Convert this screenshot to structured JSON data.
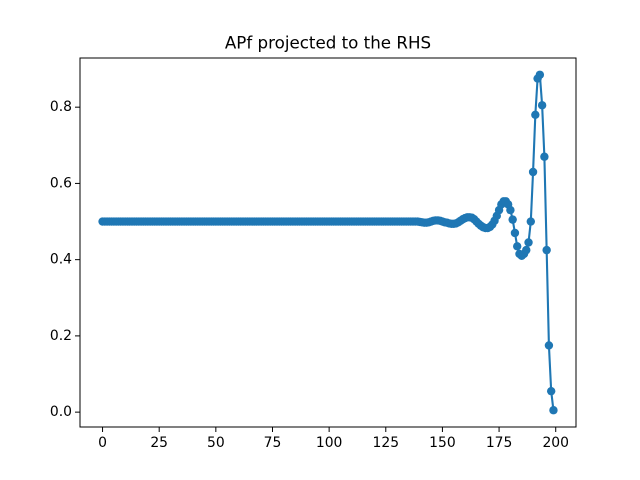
{
  "chart_data": {
    "type": "line",
    "title": "APf projected to the RHS",
    "x": [
      0,
      1,
      2,
      3,
      4,
      5,
      6,
      7,
      8,
      9,
      10,
      11,
      12,
      13,
      14,
      15,
      16,
      17,
      18,
      19,
      20,
      21,
      22,
      23,
      24,
      25,
      26,
      27,
      28,
      29,
      30,
      31,
      32,
      33,
      34,
      35,
      36,
      37,
      38,
      39,
      40,
      41,
      42,
      43,
      44,
      45,
      46,
      47,
      48,
      49,
      50,
      51,
      52,
      53,
      54,
      55,
      56,
      57,
      58,
      59,
      60,
      61,
      62,
      63,
      64,
      65,
      66,
      67,
      68,
      69,
      70,
      71,
      72,
      73,
      74,
      75,
      76,
      77,
      78,
      79,
      80,
      81,
      82,
      83,
      84,
      85,
      86,
      87,
      88,
      89,
      90,
      91,
      92,
      93,
      94,
      95,
      96,
      97,
      98,
      99,
      100,
      101,
      102,
      103,
      104,
      105,
      106,
      107,
      108,
      109,
      110,
      111,
      112,
      113,
      114,
      115,
      116,
      117,
      118,
      119,
      120,
      121,
      122,
      123,
      124,
      125,
      126,
      127,
      128,
      129,
      130,
      131,
      132,
      133,
      134,
      135,
      136,
      137,
      138,
      139,
      140,
      141,
      142,
      143,
      144,
      145,
      146,
      147,
      148,
      149,
      150,
      151,
      152,
      153,
      154,
      155,
      156,
      157,
      158,
      159,
      160,
      161,
      162,
      163,
      164,
      165,
      166,
      167,
      168,
      169,
      170,
      171,
      172,
      173,
      174,
      175,
      176,
      177,
      178,
      179,
      180,
      181,
      182,
      183,
      184,
      185,
      186,
      187,
      188,
      189,
      190,
      191,
      192,
      193,
      194,
      195,
      196,
      197,
      198,
      199
    ],
    "series": [
      {
        "color": "#1f77b4",
        "values": [
          0.5,
          0.5,
          0.5,
          0.5,
          0.5,
          0.5,
          0.5,
          0.5,
          0.5,
          0.5,
          0.5,
          0.5,
          0.5,
          0.5,
          0.5,
          0.5,
          0.5,
          0.5,
          0.5,
          0.5,
          0.5,
          0.5,
          0.5,
          0.5,
          0.5,
          0.5,
          0.5,
          0.5,
          0.5,
          0.5,
          0.5,
          0.5,
          0.5,
          0.5,
          0.5,
          0.5,
          0.5,
          0.5,
          0.5,
          0.5,
          0.5,
          0.5,
          0.5,
          0.5,
          0.5,
          0.5,
          0.5,
          0.5,
          0.5,
          0.5,
          0.5,
          0.5,
          0.5,
          0.5,
          0.5,
          0.5,
          0.5,
          0.5,
          0.5,
          0.5,
          0.5,
          0.5,
          0.5,
          0.5,
          0.5,
          0.5,
          0.5,
          0.5,
          0.5,
          0.5,
          0.5,
          0.5,
          0.5,
          0.5,
          0.5,
          0.5,
          0.5,
          0.5,
          0.5,
          0.5,
          0.5,
          0.5,
          0.5,
          0.5,
          0.5,
          0.5,
          0.5,
          0.5,
          0.5,
          0.5,
          0.5,
          0.5,
          0.5,
          0.5,
          0.5,
          0.5,
          0.5,
          0.5,
          0.5,
          0.5,
          0.5,
          0.5,
          0.5,
          0.5,
          0.5,
          0.5,
          0.5,
          0.5,
          0.5,
          0.5,
          0.5,
          0.5,
          0.5,
          0.5,
          0.5,
          0.5,
          0.5,
          0.5,
          0.5,
          0.5,
          0.5,
          0.5,
          0.5,
          0.5,
          0.5,
          0.5,
          0.5,
          0.5,
          0.5,
          0.5,
          0.5,
          0.5,
          0.5,
          0.5,
          0.5,
          0.5,
          0.5,
          0.5,
          0.5,
          0.5,
          0.499,
          0.498,
          0.497,
          0.497,
          0.498,
          0.5,
          0.502,
          0.503,
          0.503,
          0.502,
          0.5,
          0.498,
          0.497,
          0.495,
          0.494,
          0.494,
          0.495,
          0.498,
          0.502,
          0.506,
          0.509,
          0.511,
          0.511,
          0.51,
          0.506,
          0.5,
          0.494,
          0.489,
          0.485,
          0.483,
          0.483,
          0.486,
          0.492,
          0.502,
          0.515,
          0.53,
          0.545,
          0.553,
          0.553,
          0.545,
          0.53,
          0.505,
          0.47,
          0.435,
          0.415,
          0.41,
          0.415,
          0.425,
          0.445,
          0.5,
          0.63,
          0.78,
          0.875,
          0.885,
          0.805,
          0.67,
          0.425,
          0.175,
          0.055,
          0.005
        ]
      }
    ],
    "xlim": [
      -9.95,
      208.95
    ],
    "ylim": [
      -0.039,
      0.929
    ],
    "xticks": [
      0,
      25,
      50,
      75,
      100,
      125,
      150,
      175,
      200
    ],
    "yticks": [
      {
        "value": 0,
        "label": "0.0"
      },
      0.2,
      0.4,
      0.6,
      0.8
    ]
  }
}
